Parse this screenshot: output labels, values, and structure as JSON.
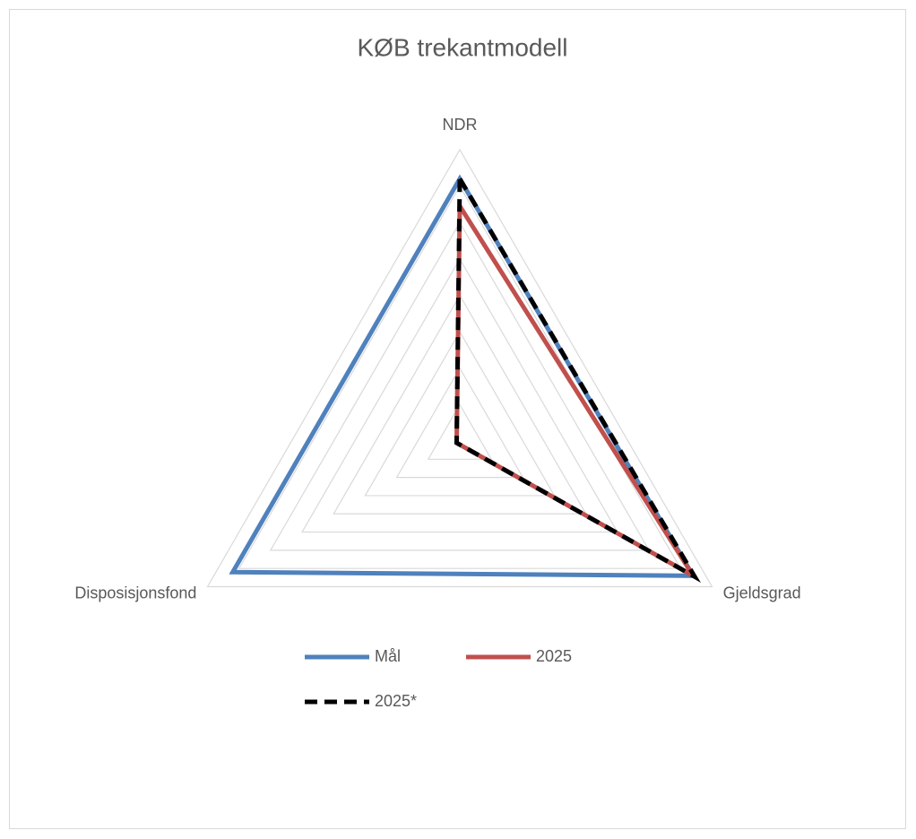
{
  "chart_data": {
    "type": "radar",
    "title": "KØB trekantmodell",
    "categories": [
      "NDR",
      "Gjeldsgrad",
      "Disposisjonsfond"
    ],
    "series": [
      {
        "name": "Mål",
        "color": "#4f81bd",
        "values": [
          7.2,
          7.4,
          7.2
        ]
      },
      {
        "name": "2025",
        "color": "#c0504d",
        "values": [
          6.45,
          7.4,
          0.1
        ]
      },
      {
        "name": "2025*",
        "color": "#000000",
        "dashed": true,
        "values": [
          7.2,
          7.45,
          0.1
        ]
      }
    ],
    "ylim": [
      0,
      8
    ],
    "yticks": [
      0,
      1,
      2,
      3,
      4,
      5,
      6,
      7,
      8
    ],
    "grid": true
  }
}
